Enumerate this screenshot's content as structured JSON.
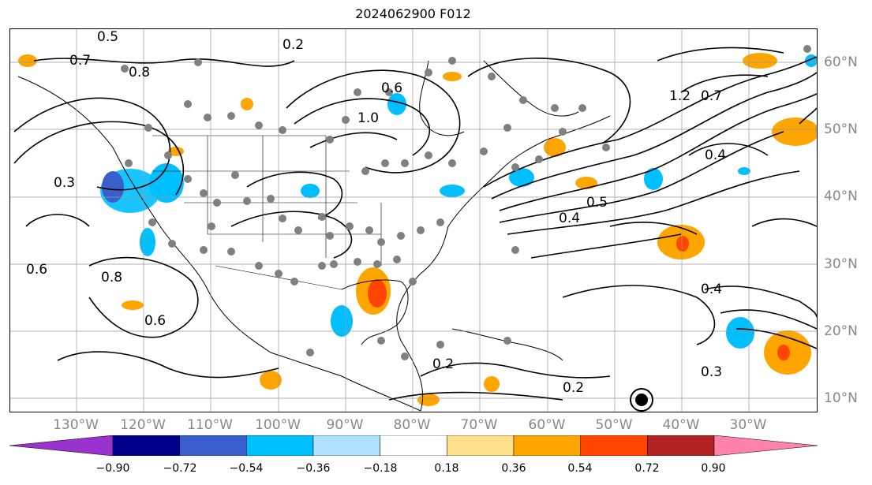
{
  "title": "2024062900 F012",
  "map": {
    "projection": "PlateCarree",
    "extent_lon": [
      -140,
      -20
    ],
    "extent_lat": [
      8,
      65
    ],
    "grid_lon": [
      -130,
      -120,
      -110,
      -100,
      -90,
      -80,
      -70,
      -60,
      -50,
      -40,
      -30
    ],
    "grid_lat": [
      10,
      20,
      30,
      40,
      50,
      60
    ],
    "lon_labels": [
      "130°W",
      "120°W",
      "110°W",
      "100°W",
      "90°W",
      "80°W",
      "70°W",
      "60°W",
      "50°W",
      "40°W",
      "30°W"
    ],
    "lat_labels": [
      "10°N",
      "20°N",
      "30°N",
      "40°N",
      "50°N",
      "60°N"
    ],
    "grid_color": "#999999"
  },
  "contour_labels": [
    "0.2",
    "0.5",
    "0.7",
    "0.6",
    "1.0",
    "0.8",
    "0.3",
    "0.4",
    "0.6",
    "1.2",
    "0.7",
    "0.4",
    "0.5",
    "0.6",
    "0.8",
    "0.2",
    "0.3",
    "0.2",
    "0.4"
  ],
  "colorbar": {
    "ticks": [
      "−0.90",
      "−0.72",
      "−0.54",
      "−0.36",
      "−0.18",
      "0.18",
      "0.36",
      "0.54",
      "0.72",
      "0.90"
    ],
    "colors": [
      "#9a32cd",
      "#00008b",
      "#3a5fcd",
      "#00bfff",
      "#b0e2ff",
      "#ffffff",
      "#fee08b",
      "#ffa500",
      "#ff4500",
      "#b22222",
      "#ff82ab"
    ]
  },
  "colors": {
    "land_outline": "#000000",
    "contour": "#000000",
    "station_dot": "#808080",
    "axis_label": "#888888"
  }
}
